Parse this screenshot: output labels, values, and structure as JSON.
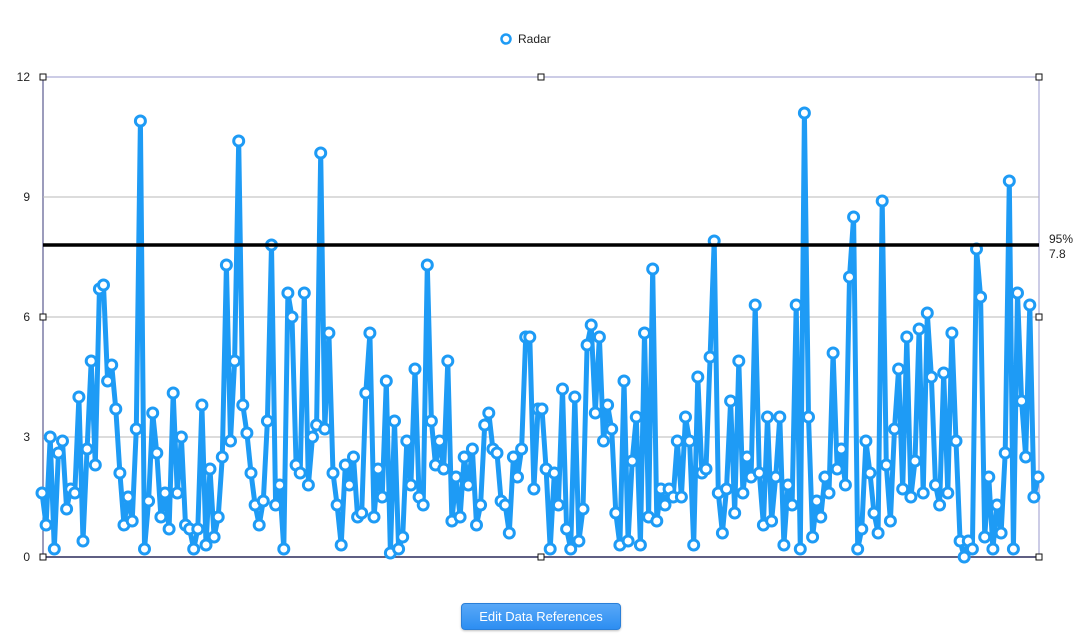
{
  "chart_data": {
    "type": "line",
    "legend": {
      "entries": [
        "Radar"
      ],
      "placement": "top-center"
    },
    "ylim": [
      0,
      12
    ],
    "yticks": [
      "0",
      "3",
      "6",
      "9",
      "12"
    ],
    "grid": true,
    "reference_line": {
      "percent_label": "95%",
      "value_label": "7.8",
      "value": 7.8
    },
    "series": [
      {
        "name": "Radar",
        "color": "#1e9bf5",
        "values": [
          1.6,
          0.8,
          3.0,
          0.2,
          2.6,
          2.9,
          1.2,
          1.7,
          1.6,
          4.0,
          0.4,
          2.7,
          4.9,
          2.3,
          6.7,
          6.8,
          4.4,
          4.8,
          3.7,
          2.1,
          0.8,
          1.5,
          0.9,
          3.2,
          10.9,
          0.2,
          1.4,
          3.6,
          2.6,
          1.0,
          1.6,
          0.7,
          4.1,
          1.6,
          3.0,
          0.8,
          0.7,
          0.2,
          0.7,
          3.8,
          0.3,
          2.2,
          0.5,
          1.0,
          2.5,
          7.3,
          2.9,
          4.9,
          10.4,
          3.8,
          3.1,
          2.1,
          1.3,
          0.8,
          1.4,
          3.4,
          7.8,
          1.3,
          1.8,
          0.2,
          6.6,
          6.0,
          2.3,
          2.1,
          6.6,
          1.8,
          3.0,
          3.3,
          10.1,
          3.2,
          5.6,
          2.1,
          1.3,
          0.3,
          2.3,
          1.8,
          2.5,
          1.0,
          1.1,
          4.1,
          5.6,
          1.0,
          2.2,
          1.5,
          4.4,
          0.1,
          3.4,
          0.2,
          0.5,
          2.9,
          1.8,
          4.7,
          1.5,
          1.3,
          7.3,
          3.4,
          2.3,
          2.9,
          2.2,
          4.9,
          0.9,
          2.0,
          1.0,
          2.5,
          1.8,
          2.7,
          0.8,
          1.3,
          3.3,
          3.6,
          2.7,
          2.6,
          1.4,
          1.3,
          0.6,
          2.5,
          2.0,
          2.7,
          5.5,
          5.5,
          1.7,
          3.7,
          3.7,
          2.2,
          0.2,
          2.1,
          1.3,
          4.2,
          0.7,
          0.2,
          4.0,
          0.4,
          1.2,
          5.3,
          5.8,
          3.6,
          5.5,
          2.9,
          3.8,
          3.2,
          1.1,
          0.3,
          4.4,
          0.4,
          2.4,
          3.5,
          0.3,
          5.6,
          1.0,
          7.2,
          0.9,
          1.7,
          1.3,
          1.7,
          1.5,
          2.9,
          1.5,
          3.5,
          2.9,
          0.3,
          4.5,
          2.1,
          2.2,
          5.0,
          7.9,
          1.6,
          0.6,
          1.7,
          3.9,
          1.1,
          4.9,
          1.6,
          2.5,
          2.0,
          6.3,
          2.1,
          0.8,
          3.5,
          0.9,
          2.0,
          3.5,
          0.3,
          1.8,
          1.3,
          6.3,
          0.2,
          11.1,
          3.5,
          0.5,
          1.4,
          1.0,
          2.0,
          1.6,
          5.1,
          2.2,
          2.7,
          1.8,
          7.0,
          8.5,
          0.2,
          0.7,
          2.9,
          2.1,
          1.1,
          0.6,
          8.9,
          2.3,
          0.9,
          3.2,
          4.7,
          1.7,
          5.5,
          1.5,
          2.4,
          5.7,
          1.6,
          6.1,
          4.5,
          1.8,
          1.3,
          4.6,
          1.6,
          5.6,
          2.9,
          0.4,
          0.0,
          0.4,
          0.2,
          7.7,
          6.5,
          0.5,
          2.0,
          0.2,
          1.3,
          0.6,
          2.6,
          9.4,
          0.2,
          6.6,
          3.9,
          2.5,
          6.3,
          1.5,
          2.0
        ]
      }
    ]
  },
  "button": {
    "label": "Edit Data References"
  }
}
